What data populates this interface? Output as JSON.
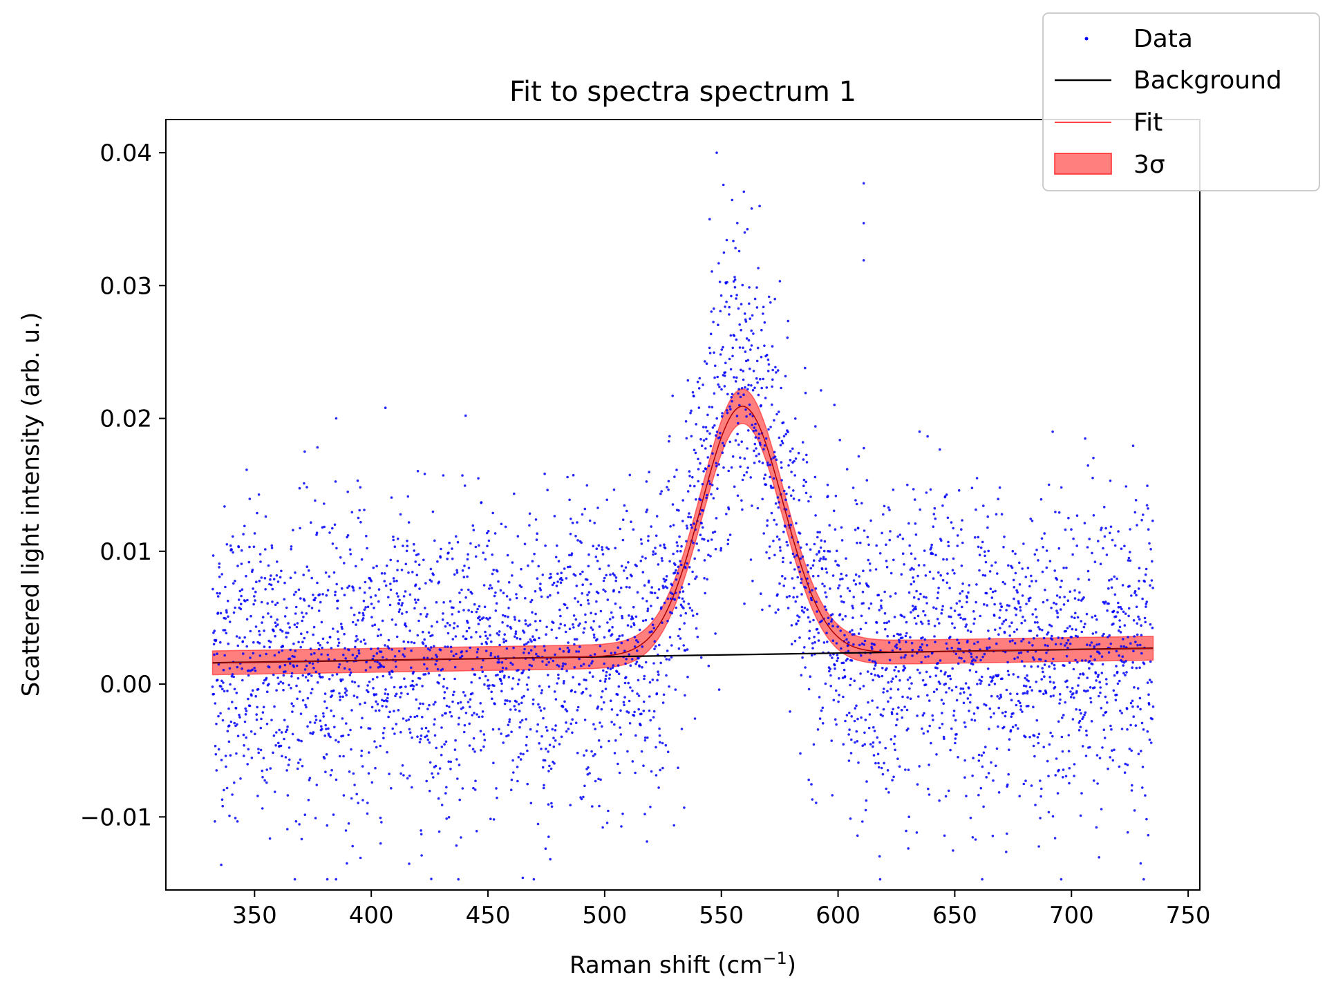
{
  "chart_data": {
    "type": "scatter",
    "title": "Fit to spectra spectrum 1",
    "xlabel": "Raman shift (cm",
    "xlabel_sup": "−1",
    "xlabel_end": ")",
    "ylabel": "Scattered light intensity (arb. u.)",
    "xlim": [
      312,
      755
    ],
    "ylim": [
      -0.0155,
      0.0425
    ],
    "x_ticks": [
      350,
      400,
      450,
      500,
      550,
      600,
      650,
      700,
      750
    ],
    "x_tick_labels": [
      "350",
      "400",
      "450",
      "500",
      "550",
      "600",
      "650",
      "700",
      "750"
    ],
    "y_ticks": [
      -0.01,
      0.0,
      0.01,
      0.02,
      0.03,
      0.04
    ],
    "y_tick_labels": [
      "−0.01",
      "0.00",
      "0.01",
      "0.02",
      "0.03",
      "0.04"
    ],
    "grid": false,
    "legend": {
      "placement": "top-right",
      "entries": [
        {
          "label": "Data",
          "kind": "marker",
          "color": "#0000ff"
        },
        {
          "label": "Background",
          "kind": "line",
          "color": "#000000"
        },
        {
          "label": "Fit",
          "kind": "line",
          "color": "#ff0000"
        },
        {
          "label": "3σ",
          "kind": "patch",
          "color": "#ff0000"
        }
      ]
    },
    "series": [
      {
        "name": "Data",
        "kind": "scatter",
        "color": "#0000ff",
        "x_range": [
          332,
          735
        ],
        "approx_points": 4000,
        "noise_std": 0.0058,
        "notable_points": [
          {
            "x": 548,
            "y": 0.04
          },
          {
            "x": 611,
            "y": 0.0377
          },
          {
            "x": 611,
            "y": 0.0347
          },
          {
            "x": 611,
            "y": 0.0319
          },
          {
            "x": 563,
            "y": 0.0358
          },
          {
            "x": 560,
            "y": 0.034
          },
          {
            "x": 545,
            "y": 0.035
          },
          {
            "x": 385,
            "y": 0.02
          },
          {
            "x": 392,
            "y": -0.0122
          },
          {
            "x": 404,
            "y": -0.012
          },
          {
            "x": 693,
            "y": -0.0116
          },
          {
            "x": 476,
            "y": -0.0115
          }
        ]
      },
      {
        "name": "Background",
        "kind": "line",
        "color": "#000000",
        "x": [
          332,
          735
        ],
        "y": [
          0.0016,
          0.0027
        ]
      },
      {
        "name": "Fit",
        "kind": "line",
        "color": "#ff0000",
        "model": "background + gaussian",
        "peak_center": 559,
        "peak_height_above_background": 0.0187,
        "peak_sigma": 17.5,
        "band_3sigma_halfwidth": 0.0009
      }
    ]
  }
}
